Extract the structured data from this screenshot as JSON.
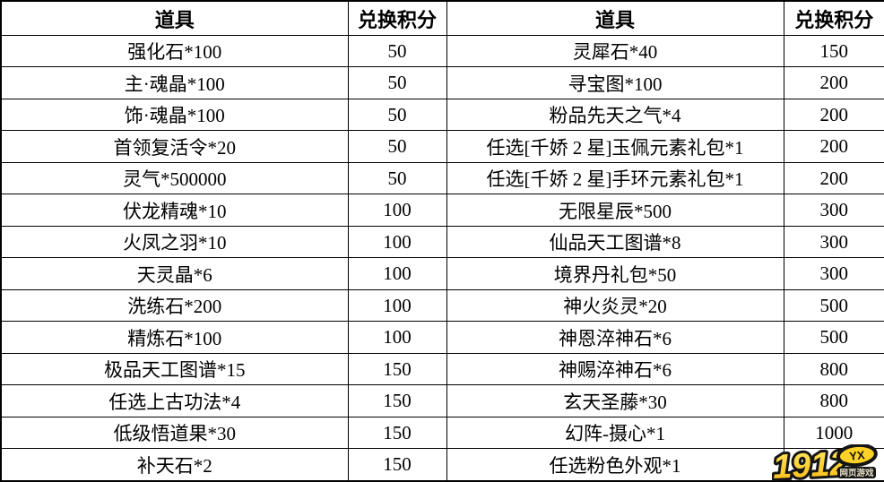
{
  "page": {
    "background_color": "#ffffff",
    "text_color": "#000000",
    "grid_color": "#000000"
  },
  "table": {
    "headers": [
      "道具",
      "兑换积分",
      "道具",
      "兑换积分"
    ],
    "rows": [
      [
        "强化石*100",
        "50",
        "灵犀石*40",
        "150"
      ],
      [
        "主·魂晶*100",
        "50",
        "寻宝图*100",
        "200"
      ],
      [
        "饰·魂晶*100",
        "50",
        "粉品先天之气*4",
        "200"
      ],
      [
        "首领复活令*20",
        "50",
        "任选[千娇 2 星]玉佩元素礼包*1",
        "200"
      ],
      [
        "灵气*500000",
        "50",
        "任选[千娇 2 星]手环元素礼包*1",
        "200"
      ],
      [
        "伏龙精魂*10",
        "100",
        "无限星辰*500",
        "300"
      ],
      [
        "火凤之羽*10",
        "100",
        "仙品天工图谱*8",
        "300"
      ],
      [
        "天灵晶*6",
        "100",
        "境界丹礼包*50",
        "300"
      ],
      [
        "洗练石*200",
        "100",
        "神火炎灵*20",
        "500"
      ],
      [
        "精炼石*100",
        "100",
        "神恩淬神石*6",
        "500"
      ],
      [
        "极品天工图谱*15",
        "150",
        "神赐淬神石*6",
        "800"
      ],
      [
        "任选上古功法*4",
        "150",
        "玄天圣藤*30",
        "800"
      ],
      [
        "低级悟道果*30",
        "150",
        "幻阵-摄心*1",
        "1000"
      ],
      [
        "补天石*2",
        "150",
        "任选粉色外观*1",
        ""
      ]
    ]
  },
  "watermark": {
    "brand": "1912",
    "badge": "YX",
    "caption": "网页游戏",
    "brand_fill_top": "#ffe95e",
    "brand_fill_bottom": "#fdb913",
    "outline_color": "#151515",
    "caption_text_color": "#e8e0c8"
  }
}
